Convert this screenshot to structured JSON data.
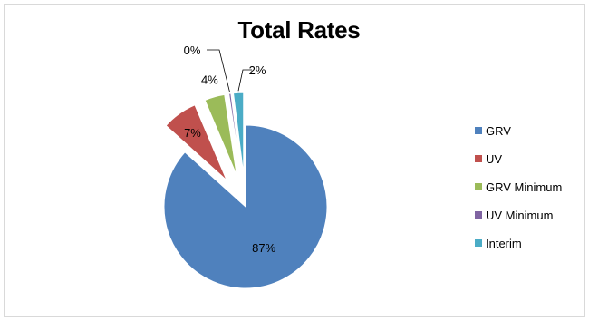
{
  "chart_data": {
    "type": "pie",
    "title": "Total Rates",
    "slices": [
      {
        "name": "GRV",
        "value": 87,
        "label": "87%",
        "color": "#4f81bd"
      },
      {
        "name": "UV",
        "value": 7,
        "label": "7%",
        "color": "#c0504d"
      },
      {
        "name": "GRV Minimum",
        "value": 4,
        "label": "4%",
        "color": "#9bbb59"
      },
      {
        "name": "UV Minimum",
        "value": 0.4,
        "label": "0%",
        "color": "#8064a2"
      },
      {
        "name": "Interim",
        "value": 2,
        "label": "2%",
        "color": "#4bacc6"
      }
    ],
    "exploded": true,
    "legend": "right"
  }
}
